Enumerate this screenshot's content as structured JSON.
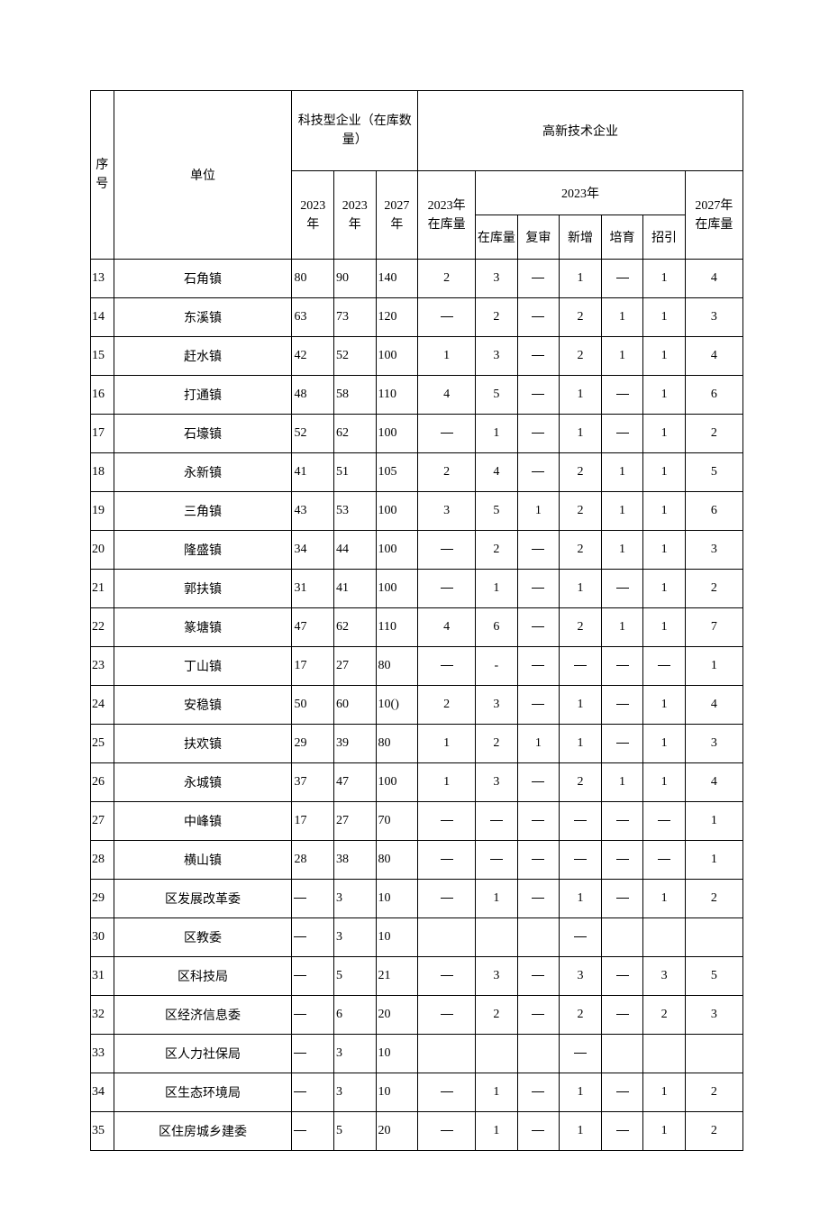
{
  "header": {
    "seq": "序号",
    "unit": "单位",
    "tech_group": "科技型企业（在库数量）",
    "tech_2023a": "2023年",
    "tech_2023b": "2023年",
    "tech_2027": "2027年",
    "hitech_group": "高新技术企业",
    "hitech_2023_stock_l1": "2023年",
    "hitech_2023_stock_l2": "在库量",
    "hitech_2023_year": "2023年",
    "hitech_stock": "在库量",
    "hitech_review": "复审",
    "hitech_new": "新增",
    "hitech_cultivate": "培育",
    "hitech_attract": "招引",
    "hitech_2027_l1": "2027年",
    "hitech_2027_l2": "在库量"
  },
  "rows": [
    {
      "seq": "13",
      "unit": "石角镇",
      "t1": "80",
      "t2": "90",
      "t3": "140",
      "a": "2",
      "b": "3",
      "c": "—",
      "d": "1",
      "e": "—",
      "f": "1",
      "g": "4"
    },
    {
      "seq": "14",
      "unit": "东溪镇",
      "t1": "63",
      "t2": "73",
      "t3": "120",
      "a": "—",
      "b": "2",
      "c": "—",
      "d": "2",
      "e": "1",
      "f": "1",
      "g": "3"
    },
    {
      "seq": "15",
      "unit": "赶水镇",
      "t1": "42",
      "t2": "52",
      "t3": "100",
      "a": "1",
      "b": "3",
      "c": "—",
      "d": "2",
      "e": "1",
      "f": "1",
      "g": "4"
    },
    {
      "seq": "16",
      "unit": "打通镇",
      "t1": "48",
      "t2": "58",
      "t3": "110",
      "a": "4",
      "b": "5",
      "c": "—",
      "d": "1",
      "e": "—",
      "f": "1",
      "g": "6"
    },
    {
      "seq": "17",
      "unit": "石壕镇",
      "t1": "52",
      "t2": "62",
      "t3": "100",
      "a": "—",
      "b": "1",
      "c": "—",
      "d": "1",
      "e": "—",
      "f": "1",
      "g": "2"
    },
    {
      "seq": "18",
      "unit": "永新镇",
      "t1": "41",
      "t2": "51",
      "t3": "105",
      "a": "2",
      "b": "4",
      "c": "—",
      "d": "2",
      "e": "1",
      "f": "1",
      "g": "5"
    },
    {
      "seq": "19",
      "unit": "三角镇",
      "t1": "43",
      "t2": "53",
      "t3": "100",
      "a": "3",
      "b": "5",
      "c": "1",
      "d": "2",
      "e": "1",
      "f": "1",
      "g": "6"
    },
    {
      "seq": "20",
      "unit": "隆盛镇",
      "t1": "34",
      "t2": "44",
      "t3": "100",
      "a": "—",
      "b": "2",
      "c": "—",
      "d": "2",
      "e": "1",
      "f": "1",
      "g": "3"
    },
    {
      "seq": "21",
      "unit": "郭扶镇",
      "t1": "31",
      "t2": "41",
      "t3": "100",
      "a": "—",
      "b": "1",
      "c": "—",
      "d": "1",
      "e": "—",
      "f": "1",
      "g": "2"
    },
    {
      "seq": "22",
      "unit": "篆塘镇",
      "t1": "47",
      "t2": "62",
      "t3": "110",
      "a": "4",
      "b": "6",
      "c": "—",
      "d": "2",
      "e": "1",
      "f": "1",
      "g": "7"
    },
    {
      "seq": "23",
      "unit": "丁山镇",
      "t1": "17",
      "t2": "27",
      "t3": "80",
      "a": "—",
      "b": "-",
      "c": "—",
      "d": "—",
      "e": "—",
      "f": "—",
      "g": "1"
    },
    {
      "seq": "24",
      "unit": "安稳镇",
      "t1": "50",
      "t2": "60",
      "t3": "10()",
      "a": "2",
      "b": "3",
      "c": "—",
      "d": "1",
      "e": "—",
      "f": "1",
      "g": "4"
    },
    {
      "seq": "25",
      "unit": "扶欢镇",
      "t1": "29",
      "t2": "39",
      "t3": "80",
      "a": "1",
      "b": "2",
      "c": "1",
      "d": "1",
      "e": "—",
      "f": "1",
      "g": "3"
    },
    {
      "seq": "26",
      "unit": "永城镇",
      "t1": "37",
      "t2": "47",
      "t3": "100",
      "a": "1",
      "b": "3",
      "c": "—",
      "d": "2",
      "e": "1",
      "f": "1",
      "g": "4"
    },
    {
      "seq": "27",
      "unit": "中峰镇",
      "t1": "17",
      "t2": "27",
      "t3": "70",
      "a": "—",
      "b": "—",
      "c": "—",
      "d": "—",
      "e": "—",
      "f": "—",
      "g": "1"
    },
    {
      "seq": "28",
      "unit": "横山镇",
      "t1": "28",
      "t2": "38",
      "t3": "80",
      "a": "—",
      "b": "—",
      "c": "—",
      "d": "—",
      "e": "—",
      "f": "—",
      "g": "1"
    },
    {
      "seq": "29",
      "unit": "区发展改革委",
      "t1": "—",
      "t2": "3",
      "t3": "10",
      "a": "—",
      "b": "1",
      "c": "—",
      "d": "1",
      "e": "—",
      "f": "1",
      "g": "2"
    },
    {
      "seq": "30",
      "unit": "区教委",
      "t1": "—",
      "t2": "3",
      "t3": "10",
      "a": "",
      "b": "",
      "c": "",
      "d": "—",
      "e": "",
      "f": "",
      "g": ""
    },
    {
      "seq": "31",
      "unit": "区科技局",
      "t1": "—",
      "t2": "5",
      "t3": "21",
      "a": "—",
      "b": "3",
      "c": "—",
      "d": "3",
      "e": "—",
      "f": "3",
      "g": "5"
    },
    {
      "seq": "32",
      "unit": "区经济信息委",
      "t1": "—",
      "t2": "6",
      "t3": "20",
      "a": "—",
      "b": "2",
      "c": "—",
      "d": "2",
      "e": "—",
      "f": "2",
      "g": "3"
    },
    {
      "seq": "33",
      "unit": "区人力社保局",
      "t1": "—",
      "t2": "3",
      "t3": "10",
      "a": "",
      "b": "",
      "c": "",
      "d": "—",
      "e": "",
      "f": "",
      "g": ""
    },
    {
      "seq": "34",
      "unit": "区生态环境局",
      "t1": "—",
      "t2": "3",
      "t3": "10",
      "a": "—",
      "b": "1",
      "c": "—",
      "d": "1",
      "e": "—",
      "f": "1",
      "g": "2"
    },
    {
      "seq": "35",
      "unit": "区住房城乡建委",
      "t1": "—",
      "t2": "5",
      "t3": "20",
      "a": "—",
      "b": "1",
      "c": "—",
      "d": "1",
      "e": "—",
      "f": "1",
      "g": "2"
    }
  ]
}
